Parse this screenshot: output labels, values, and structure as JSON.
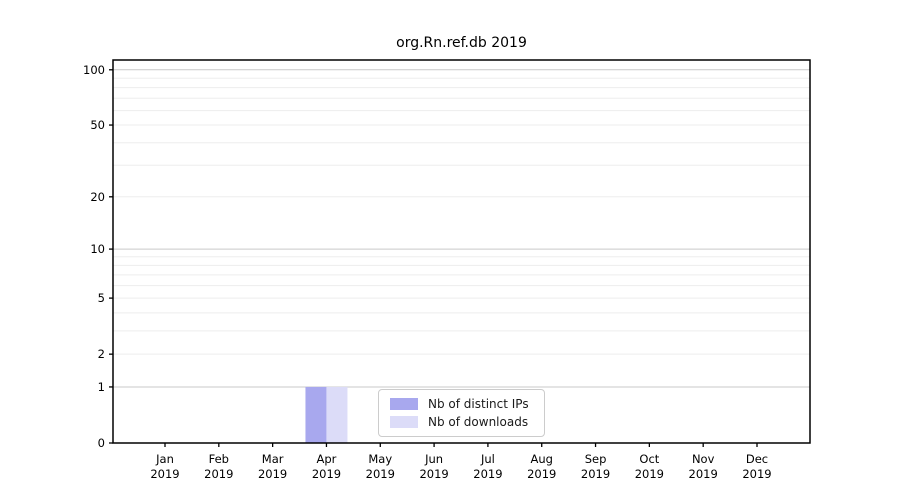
{
  "title": "org.Rn.ref.db 2019",
  "chart_data": {
    "type": "bar",
    "title": "org.Rn.ref.db 2019",
    "categories": [
      "Jan 2019",
      "Feb 2019",
      "Mar 2019",
      "Apr 2019",
      "May 2019",
      "Jun 2019",
      "Jul 2019",
      "Aug 2019",
      "Sep 2019",
      "Oct 2019",
      "Nov 2019",
      "Dec 2019"
    ],
    "series": [
      {
        "name": "Nb of distinct IPs",
        "color": "#a8a8ee",
        "values": [
          0,
          0,
          0,
          1,
          0,
          0,
          0,
          0,
          0,
          0,
          0,
          0
        ]
      },
      {
        "name": "Nb of downloads",
        "color": "#dcdcf8",
        "values": [
          0,
          0,
          0,
          1,
          0,
          0,
          0,
          0,
          0,
          0,
          0,
          0
        ]
      }
    ],
    "xlabel": "",
    "ylabel": "",
    "yscale": "log1p",
    "ylim": [
      0,
      113
    ],
    "ytick_values": [
      0,
      1,
      2,
      5,
      10,
      20,
      50,
      100
    ],
    "ytick_labels": [
      "0",
      "1",
      "2",
      "5",
      "10",
      "20",
      "50",
      "100"
    ],
    "grid_major_values": [
      1,
      10,
      100
    ],
    "grid_minor_values": [
      2,
      3,
      4,
      5,
      6,
      7,
      8,
      9,
      20,
      30,
      40,
      50,
      60,
      70,
      80,
      90
    ],
    "grid": "horizontal",
    "legend_position": "lower center"
  },
  "legend": {
    "items": [
      {
        "label": "Nb of distinct IPs",
        "color": "#a8a8ee"
      },
      {
        "label": "Nb of downloads",
        "color": "#dcdcf8"
      }
    ]
  },
  "colors": {
    "background": "#ffffff",
    "spine": "#000000",
    "grid_major": "#c9c9c9",
    "grid_minor": "#ededed",
    "tick": "#000000",
    "text": "#000000",
    "legend_border": "#cccccc"
  }
}
